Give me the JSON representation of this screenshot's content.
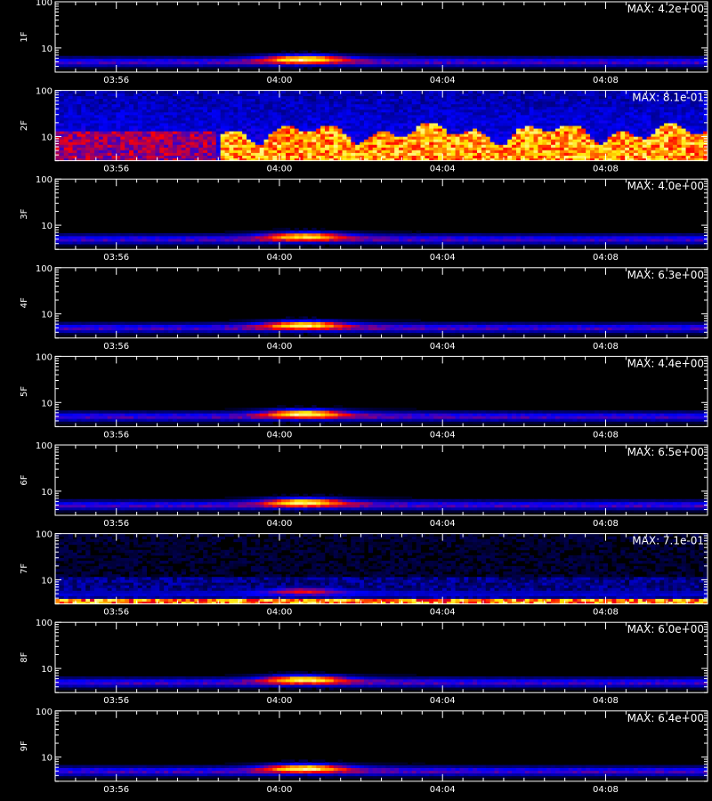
{
  "chart_data": {
    "type": "heatmap",
    "y_scale": "log",
    "ylim": [
      3,
      100
    ],
    "y_ticks": [
      "10",
      "100"
    ],
    "x_ticks": [
      "03:56",
      "04:00",
      "04:04",
      "04:08"
    ],
    "x_range_minutes": [
      -5.5,
      10.5
    ],
    "x_tick_minutes": [
      -4,
      0,
      4,
      8
    ],
    "panels": [
      {
        "name": "1F",
        "max_text": "MAX: 4.2e+00",
        "pattern": "burst",
        "intensity": 1.0
      },
      {
        "name": "2F",
        "max_text": "MAX: 8.1e-01",
        "pattern": "noisy",
        "intensity": 1.0
      },
      {
        "name": "3F",
        "max_text": "MAX: 4.0e+00",
        "pattern": "burst",
        "intensity": 0.9
      },
      {
        "name": "4F",
        "max_text": "MAX: 6.3e+00",
        "pattern": "burst",
        "intensity": 0.95
      },
      {
        "name": "5F",
        "max_text": "MAX: 4.4e+00",
        "pattern": "burst",
        "intensity": 1.0
      },
      {
        "name": "6F",
        "max_text": "MAX: 6.5e+00",
        "pattern": "burst",
        "intensity": 1.0
      },
      {
        "name": "7F",
        "max_text": "MAX: 7.1e-01",
        "pattern": "lowband",
        "intensity": 0.8
      },
      {
        "name": "8F",
        "max_text": "MAX: 6.0e+00",
        "pattern": "burst",
        "intensity": 1.0
      },
      {
        "name": "9F",
        "max_text": "MAX: 6.4e+00",
        "pattern": "burst",
        "intensity": 1.0
      }
    ]
  },
  "colors": {
    "background": "#000000",
    "axis": "#ffffff",
    "low": "#0000ff",
    "mid": "#ff0000",
    "high": "#ffff00"
  }
}
